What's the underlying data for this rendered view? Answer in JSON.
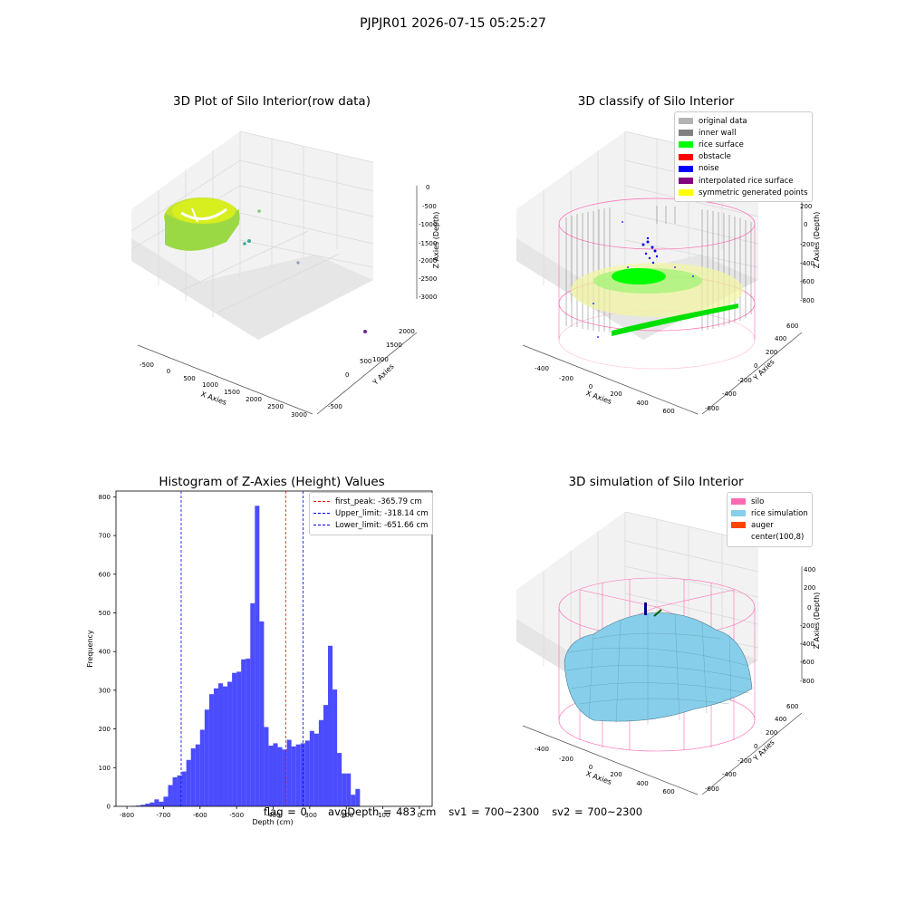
{
  "suptitle": "PJPJR01 2026-07-15 05:25:27",
  "panels": {
    "raw": {
      "title": "3D Plot of Silo Interior(row data)",
      "xlabel": "X Axies",
      "ylabel": "Y Axies",
      "zlabel": "Z Axies (Depth)",
      "xticks": [
        "-500",
        "0",
        "500",
        "1000",
        "1500",
        "2000",
        "2500",
        "3000"
      ],
      "yticks": [
        "-500",
        "0",
        "500",
        "1000",
        "1500",
        "2000"
      ],
      "zticks": [
        "0",
        "-500",
        "-1000",
        "-1500",
        "-2000",
        "-2500",
        "-3000"
      ]
    },
    "classify": {
      "title": "3D classify of Silo Interior",
      "xlabel": "X Axies",
      "ylabel": "Y Axies",
      "zlabel": "Z Axies (Depth)",
      "xticks": [
        "-400",
        "-200",
        "0",
        "200",
        "400",
        "600"
      ],
      "yticks": [
        "-600",
        "-400",
        "-200",
        "0",
        "200",
        "400",
        "600"
      ],
      "zticks": [
        "200",
        "0",
        "-200",
        "-400",
        "-600",
        "-800"
      ],
      "legend": [
        {
          "label": "original data",
          "color": "#b3b3b3"
        },
        {
          "label": "inner wall",
          "color": "#808080"
        },
        {
          "label": "rice surface",
          "color": "#00ff00"
        },
        {
          "label": "obstacle",
          "color": "#ff0000"
        },
        {
          "label": "noise",
          "color": "#0000ff"
        },
        {
          "label": "interpolated rice surface",
          "color": "#800080"
        },
        {
          "label": "symmetric generated points",
          "color": "#ffff00"
        }
      ]
    },
    "simulation": {
      "title": "3D simulation of Silo Interior",
      "xlabel": "X Axies",
      "ylabel": "Y Axies",
      "zlabel": "Z Axies (Depth)",
      "xticks": [
        "-400",
        "-200",
        "0",
        "200",
        "400",
        "600"
      ],
      "yticks": [
        "-600",
        "-400",
        "-200",
        "0",
        "200",
        "400",
        "600"
      ],
      "zticks": [
        "400",
        "200",
        "0",
        "-200",
        "-400",
        "-600",
        "-800"
      ],
      "legend": [
        {
          "label": "silo",
          "color": "#ff69b4"
        },
        {
          "label": "rice simulation",
          "color": "#87ceeb"
        },
        {
          "label": "auger",
          "color": "#ff4500"
        },
        {
          "label": "center(100,8)",
          "color": "#ffffff"
        }
      ]
    }
  },
  "chart_data": {
    "type": "bar",
    "title": "Histogram of Z-Axies (Height) Values",
    "xlabel": "Depth (cm)",
    "ylabel": "Frequency",
    "xlim": [
      -830,
      35
    ],
    "ylim": [
      0,
      815
    ],
    "xticks": [
      -800,
      -700,
      -600,
      -500,
      -400,
      -300,
      -200,
      -100,
      0
    ],
    "yticks": [
      0,
      100,
      200,
      300,
      400,
      500,
      600,
      700,
      800
    ],
    "bin_width": 12.5,
    "bin_start": -787.5,
    "values": [
      1,
      2,
      4,
      7,
      10,
      18,
      12,
      25,
      55,
      75,
      80,
      90,
      120,
      150,
      160,
      198,
      250,
      290,
      305,
      318,
      310,
      322,
      345,
      348,
      380,
      382,
      525,
      777,
      478,
      205,
      157,
      163,
      153,
      147,
      172,
      155,
      160,
      163,
      170,
      195,
      188,
      223,
      262,
      415,
      302,
      138,
      85,
      85,
      30,
      45
    ],
    "color": "#0000ff",
    "vlines": [
      {
        "label": "first_peak: -365.79 cm",
        "x": -365.79,
        "color": "#ff0000"
      },
      {
        "label": "Upper_limit: -318.14 cm",
        "x": -318.14,
        "color": "#0000ff"
      },
      {
        "label": "Lower_limit: -651.66 cm",
        "x": -651.66,
        "color": "#0000ff"
      }
    ],
    "legend_position": "top-right"
  },
  "status": {
    "flag": "flag = 0",
    "avg_depth": "avgDepth = 483 cm",
    "sv1": "sv1 = 700~2300",
    "sv2": "sv2 = 700~2300"
  }
}
